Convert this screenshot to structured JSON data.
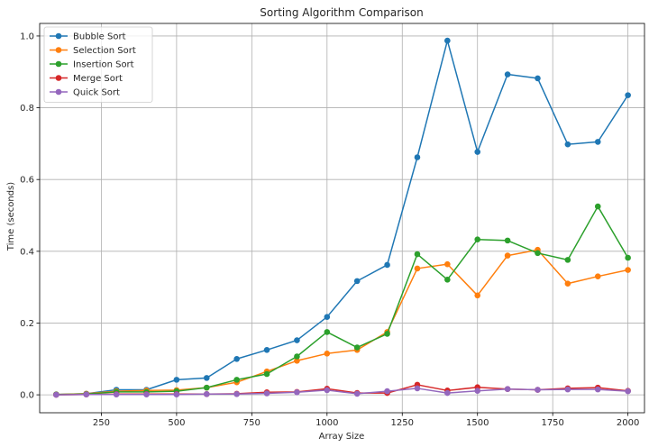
{
  "chart_data": {
    "type": "line",
    "title": "Sorting Algorithm Comparison",
    "xlabel": "Array Size",
    "ylabel": "Time (seconds)",
    "xlim": [
      45,
      2055
    ],
    "ylim": [
      -0.05,
      1.035
    ],
    "xticks": [
      250,
      500,
      750,
      1000,
      1250,
      1500,
      1750,
      2000
    ],
    "yticks": [
      0.0,
      0.2,
      0.4,
      0.6,
      0.8,
      1.0
    ],
    "xtick_labels": [
      "250",
      "500",
      "750",
      "1000",
      "1250",
      "1500",
      "1750",
      "2000"
    ],
    "ytick_labels": [
      "0.0",
      "0.2",
      "0.4",
      "0.6",
      "0.8",
      "1.0"
    ],
    "grid": true,
    "legend_position": "top-left",
    "x": [
      100,
      200,
      300,
      400,
      500,
      600,
      700,
      800,
      900,
      1000,
      1100,
      1200,
      1300,
      1400,
      1500,
      1600,
      1700,
      1800,
      1900,
      2000
    ],
    "series": [
      {
        "name": "Bubble Sort",
        "color": "#1f77b4",
        "values": [
          0.001,
          0.003,
          0.014,
          0.014,
          0.042,
          0.047,
          0.1,
          0.125,
          0.152,
          0.217,
          0.317,
          0.362,
          0.662,
          0.987,
          0.677,
          0.893,
          0.882,
          0.698,
          0.705,
          0.835
        ]
      },
      {
        "name": "Selection Sort",
        "color": "#ff7f0e",
        "values": [
          0.001,
          0.003,
          0.01,
          0.012,
          0.013,
          0.02,
          0.035,
          0.065,
          0.095,
          0.115,
          0.125,
          0.175,
          0.352,
          0.364,
          0.277,
          0.388,
          0.404,
          0.31,
          0.33,
          0.348
        ]
      },
      {
        "name": "Insertion Sort",
        "color": "#2ca02c",
        "values": [
          0.001,
          0.002,
          0.008,
          0.008,
          0.01,
          0.02,
          0.042,
          0.058,
          0.107,
          0.175,
          0.132,
          0.17,
          0.392,
          0.321,
          0.433,
          0.43,
          0.395,
          0.376,
          0.525,
          0.382
        ]
      },
      {
        "name": "Merge Sort",
        "color": "#d62728",
        "values": [
          0.0,
          0.001,
          0.002,
          0.002,
          0.002,
          0.002,
          0.003,
          0.007,
          0.008,
          0.017,
          0.005,
          0.005,
          0.028,
          0.012,
          0.021,
          0.016,
          0.014,
          0.018,
          0.02,
          0.011
        ]
      },
      {
        "name": "Quick Sort",
        "color": "#9467bd",
        "values": [
          0.0,
          0.001,
          0.001,
          0.001,
          0.001,
          0.002,
          0.002,
          0.004,
          0.007,
          0.013,
          0.003,
          0.01,
          0.018,
          0.005,
          0.011,
          0.016,
          0.014,
          0.015,
          0.015,
          0.01
        ]
      }
    ]
  }
}
